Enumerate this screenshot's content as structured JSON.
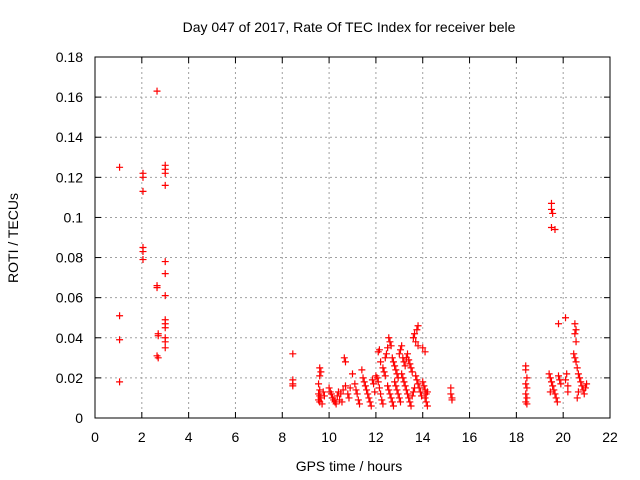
{
  "chart_data": {
    "type": "scatter",
    "title": "Day 047 of 2017, Rate Of TEC Index for receiver bele",
    "xlabel": "GPS time / hours",
    "ylabel": "ROTI / TECUs",
    "xlim": [
      0,
      22
    ],
    "ylim": [
      0,
      0.18
    ],
    "xticks": [
      "0",
      "2",
      "4",
      "6",
      "8",
      "10",
      "12",
      "14",
      "16",
      "18",
      "20",
      "22"
    ],
    "yticks": [
      "0",
      "0.02",
      "0.04",
      "0.06",
      "0.08",
      "0.1",
      "0.12",
      "0.14",
      "0.16",
      "0.18"
    ],
    "grid": true,
    "marker": "+",
    "colors": {
      "points": "#ff0000",
      "grid": "#a0a0a0",
      "axes": "#000000"
    },
    "series": [
      {
        "points": [
          [
            1.05,
            0.125
          ],
          [
            1.05,
            0.051
          ],
          [
            1.05,
            0.039
          ],
          [
            1.05,
            0.018
          ],
          [
            2.05,
            0.122
          ],
          [
            2.05,
            0.12
          ],
          [
            2.05,
            0.113
          ],
          [
            2.05,
            0.085
          ],
          [
            2.05,
            0.083
          ],
          [
            2.05,
            0.079
          ],
          [
            2.65,
            0.163
          ],
          [
            2.65,
            0.066
          ],
          [
            2.65,
            0.065
          ],
          [
            2.7,
            0.042
          ],
          [
            2.7,
            0.041
          ],
          [
            2.65,
            0.031
          ],
          [
            2.7,
            0.03
          ],
          [
            3.0,
            0.126
          ],
          [
            3.0,
            0.124
          ],
          [
            3.0,
            0.122
          ],
          [
            3.0,
            0.116
          ],
          [
            3.0,
            0.078
          ],
          [
            3.0,
            0.072
          ],
          [
            3.0,
            0.061
          ],
          [
            3.0,
            0.049
          ],
          [
            3.0,
            0.047
          ],
          [
            3.0,
            0.045
          ],
          [
            3.0,
            0.04
          ],
          [
            3.0,
            0.038
          ],
          [
            3.0,
            0.035
          ],
          [
            8.45,
            0.032
          ],
          [
            8.45,
            0.019
          ],
          [
            8.45,
            0.017
          ],
          [
            8.45,
            0.016
          ],
          [
            9.6,
            0.025
          ],
          [
            9.65,
            0.023
          ],
          [
            9.6,
            0.021
          ],
          [
            9.55,
            0.017
          ],
          [
            9.6,
            0.014
          ],
          [
            9.55,
            0.012
          ],
          [
            9.6,
            0.011
          ],
          [
            9.65,
            0.01
          ],
          [
            9.55,
            0.009
          ],
          [
            9.6,
            0.008
          ],
          [
            9.7,
            0.007
          ],
          [
            9.75,
            0.013
          ],
          [
            9.8,
            0.011
          ],
          [
            10.0,
            0.015
          ],
          [
            10.05,
            0.013
          ],
          [
            10.1,
            0.012
          ],
          [
            10.15,
            0.01
          ],
          [
            10.2,
            0.009
          ],
          [
            10.25,
            0.008
          ],
          [
            10.3,
            0.007
          ],
          [
            10.35,
            0.011
          ],
          [
            10.4,
            0.013
          ],
          [
            10.45,
            0.009
          ],
          [
            10.5,
            0.012
          ],
          [
            10.55,
            0.008
          ],
          [
            10.6,
            0.014
          ],
          [
            10.65,
            0.03
          ],
          [
            10.7,
            0.028
          ],
          [
            10.7,
            0.016
          ],
          [
            10.8,
            0.012
          ],
          [
            10.85,
            0.01
          ],
          [
            10.9,
            0.015
          ],
          [
            11.0,
            0.022
          ],
          [
            11.1,
            0.017
          ],
          [
            11.15,
            0.014
          ],
          [
            11.2,
            0.012
          ],
          [
            11.25,
            0.009
          ],
          [
            11.3,
            0.007
          ],
          [
            11.4,
            0.024
          ],
          [
            11.45,
            0.02
          ],
          [
            11.5,
            0.018
          ],
          [
            11.55,
            0.016
          ],
          [
            11.6,
            0.014
          ],
          [
            11.65,
            0.012
          ],
          [
            11.7,
            0.01
          ],
          [
            11.75,
            0.008
          ],
          [
            11.8,
            0.006
          ],
          [
            11.85,
            0.019
          ],
          [
            11.9,
            0.017
          ],
          [
            11.95,
            0.013
          ],
          [
            12.0,
            0.021
          ],
          [
            12.05,
            0.02
          ],
          [
            12.1,
            0.018
          ],
          [
            12.15,
            0.015
          ],
          [
            12.2,
            0.012
          ],
          [
            12.25,
            0.009
          ],
          [
            12.3,
            0.007
          ],
          [
            12.1,
            0.033
          ],
          [
            12.15,
            0.034
          ],
          [
            12.2,
            0.028
          ],
          [
            12.3,
            0.025
          ],
          [
            12.35,
            0.023
          ],
          [
            12.4,
            0.021
          ],
          [
            12.4,
            0.03
          ],
          [
            12.45,
            0.032
          ],
          [
            12.5,
            0.035
          ],
          [
            12.55,
            0.04
          ],
          [
            12.6,
            0.038
          ],
          [
            12.65,
            0.036
          ],
          [
            12.5,
            0.016
          ],
          [
            12.55,
            0.014
          ],
          [
            12.6,
            0.012
          ],
          [
            12.65,
            0.01
          ],
          [
            12.7,
            0.008
          ],
          [
            12.75,
            0.006
          ],
          [
            12.7,
            0.03
          ],
          [
            12.75,
            0.028
          ],
          [
            12.8,
            0.026
          ],
          [
            12.85,
            0.024
          ],
          [
            12.9,
            0.022
          ],
          [
            12.95,
            0.02
          ],
          [
            12.8,
            0.018
          ],
          [
            12.85,
            0.016
          ],
          [
            12.9,
            0.014
          ],
          [
            12.95,
            0.012
          ],
          [
            13.0,
            0.01
          ],
          [
            13.05,
            0.008
          ],
          [
            13.0,
            0.032
          ],
          [
            13.05,
            0.034
          ],
          [
            13.1,
            0.036
          ],
          [
            13.15,
            0.03
          ],
          [
            13.2,
            0.028
          ],
          [
            13.25,
            0.026
          ],
          [
            13.1,
            0.022
          ],
          [
            13.15,
            0.02
          ],
          [
            13.2,
            0.018
          ],
          [
            13.25,
            0.016
          ],
          [
            13.3,
            0.014
          ],
          [
            13.35,
            0.012
          ],
          [
            13.3,
            0.03
          ],
          [
            13.35,
            0.032
          ],
          [
            13.4,
            0.029
          ],
          [
            13.45,
            0.027
          ],
          [
            13.5,
            0.025
          ],
          [
            13.55,
            0.023
          ],
          [
            13.4,
            0.01
          ],
          [
            13.45,
            0.008
          ],
          [
            13.5,
            0.006
          ],
          [
            13.55,
            0.011
          ],
          [
            13.6,
            0.013
          ],
          [
            13.65,
            0.015
          ],
          [
            13.6,
            0.04
          ],
          [
            13.65,
            0.042
          ],
          [
            13.7,
            0.038
          ],
          [
            13.75,
            0.044
          ],
          [
            13.8,
            0.046
          ],
          [
            13.8,
            0.036
          ],
          [
            13.7,
            0.021
          ],
          [
            13.75,
            0.019
          ],
          [
            13.8,
            0.017
          ],
          [
            13.85,
            0.015
          ],
          [
            13.9,
            0.013
          ],
          [
            13.95,
            0.011
          ],
          [
            14.0,
            0.035
          ],
          [
            14.1,
            0.033
          ],
          [
            14.0,
            0.018
          ],
          [
            14.05,
            0.016
          ],
          [
            14.1,
            0.014
          ],
          [
            14.15,
            0.012
          ],
          [
            14.1,
            0.01
          ],
          [
            14.15,
            0.008
          ],
          [
            14.2,
            0.006
          ],
          [
            14.2,
            0.013
          ],
          [
            15.2,
            0.015
          ],
          [
            15.2,
            0.012
          ],
          [
            15.25,
            0.01
          ],
          [
            15.25,
            0.009
          ],
          [
            18.4,
            0.026
          ],
          [
            18.4,
            0.024
          ],
          [
            18.45,
            0.02
          ],
          [
            18.4,
            0.017
          ],
          [
            18.45,
            0.015
          ],
          [
            18.4,
            0.012
          ],
          [
            18.45,
            0.01
          ],
          [
            18.4,
            0.008
          ],
          [
            18.45,
            0.007
          ],
          [
            19.5,
            0.107
          ],
          [
            19.5,
            0.104
          ],
          [
            19.55,
            0.102
          ],
          [
            19.5,
            0.095
          ],
          [
            19.65,
            0.094
          ],
          [
            19.4,
            0.022
          ],
          [
            19.45,
            0.02
          ],
          [
            19.5,
            0.018
          ],
          [
            19.55,
            0.016
          ],
          [
            19.6,
            0.014
          ],
          [
            19.65,
            0.012
          ],
          [
            19.7,
            0.01
          ],
          [
            19.75,
            0.008
          ],
          [
            19.8,
            0.021
          ],
          [
            19.85,
            0.019
          ],
          [
            19.9,
            0.017
          ],
          [
            19.45,
            0.013
          ],
          [
            19.8,
            0.047
          ],
          [
            20.1,
            0.05
          ],
          [
            20.15,
            0.022
          ],
          [
            20.1,
            0.019
          ],
          [
            20.2,
            0.016
          ],
          [
            20.2,
            0.013
          ],
          [
            20.5,
            0.047
          ],
          [
            20.55,
            0.044
          ],
          [
            20.5,
            0.042
          ],
          [
            20.55,
            0.038
          ],
          [
            20.45,
            0.032
          ],
          [
            20.5,
            0.03
          ],
          [
            20.55,
            0.028
          ],
          [
            20.6,
            0.025
          ],
          [
            20.65,
            0.022
          ],
          [
            20.7,
            0.02
          ],
          [
            20.75,
            0.018
          ],
          [
            20.8,
            0.016
          ],
          [
            20.85,
            0.014
          ],
          [
            20.9,
            0.012
          ],
          [
            20.95,
            0.015
          ],
          [
            21.0,
            0.017
          ],
          [
            20.6,
            0.01
          ],
          [
            20.65,
            0.013
          ]
        ]
      }
    ]
  }
}
